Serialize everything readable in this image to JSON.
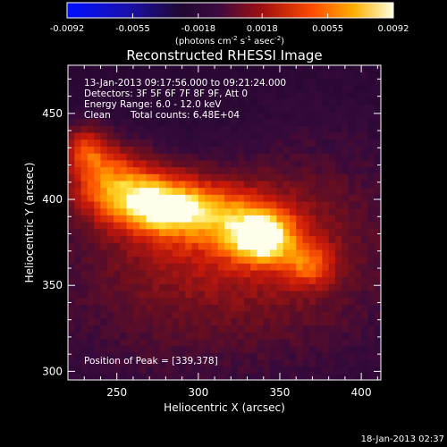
{
  "chart_data": {
    "type": "heatmap",
    "title": "Reconstructed RHESSI Image",
    "xlabel": "Heliocentric X (arcsec)",
    "ylabel": "Heliocentric Y (arcsec)",
    "xlim": [
      220,
      412
    ],
    "ylim": [
      295,
      478
    ],
    "x_ticks": [
      250,
      300,
      350,
      400
    ],
    "y_ticks": [
      300,
      350,
      400,
      450
    ],
    "colorbar": {
      "range": [
        -0.0092,
        0.0092
      ],
      "ticks": [
        "-0.0092",
        "-0.0055",
        "-0.0018",
        "0.0018",
        "0.0055",
        "0.0092"
      ],
      "unit_label": "(photons cm",
      "unit_exp1": "-2",
      "unit_mid": " s",
      "unit_exp2": "-1",
      "unit_mid2": " asec",
      "unit_exp3": "-2",
      "unit_end": ")",
      "colormap": "blue-black-red-yellow-white"
    },
    "annotations": {
      "time_range": "13-Jan-2013 09:17:56.000 to 09:21:24.000",
      "detectors": "Detectors: 3F 5F 6F 7F 8F 9F, Att 0",
      "energy": "Energy Range: 6.0 - 12.0 keV",
      "method": "Clean",
      "counts": "Total counts: 6.48E+04",
      "peak": "Position of Peak = [339,378]"
    },
    "peak": {
      "x": 339,
      "y": 378
    },
    "sources": [
      {
        "x": 339,
        "y": 378,
        "sx": 14,
        "sy": 10,
        "amp": 1.0
      },
      {
        "x": 300,
        "y": 393,
        "sx": 30,
        "sy": 13,
        "amp": 0.66
      },
      {
        "x": 278,
        "y": 396,
        "sx": 15,
        "sy": 9,
        "amp": 0.42
      },
      {
        "x": 258,
        "y": 405,
        "sx": 24,
        "sy": 13,
        "amp": 0.55
      },
      {
        "x": 230,
        "y": 430,
        "sx": 11,
        "sy": 10,
        "amp": 0.58
      },
      {
        "x": 245,
        "y": 415,
        "sx": 18,
        "sy": 16,
        "amp": 0.45
      },
      {
        "x": 368,
        "y": 362,
        "sx": 11,
        "sy": 9,
        "amp": 0.48
      },
      {
        "x": 310,
        "y": 375,
        "sx": 55,
        "sy": 30,
        "amp": 0.4
      },
      {
        "x": 300,
        "y": 335,
        "sx": 90,
        "sy": 45,
        "amp": 0.24
      },
      {
        "x": 380,
        "y": 400,
        "sx": 40,
        "sy": 50,
        "amp": 0.18
      }
    ]
  },
  "footer": {
    "timestamp": "18-Jan-2013 02:37"
  }
}
